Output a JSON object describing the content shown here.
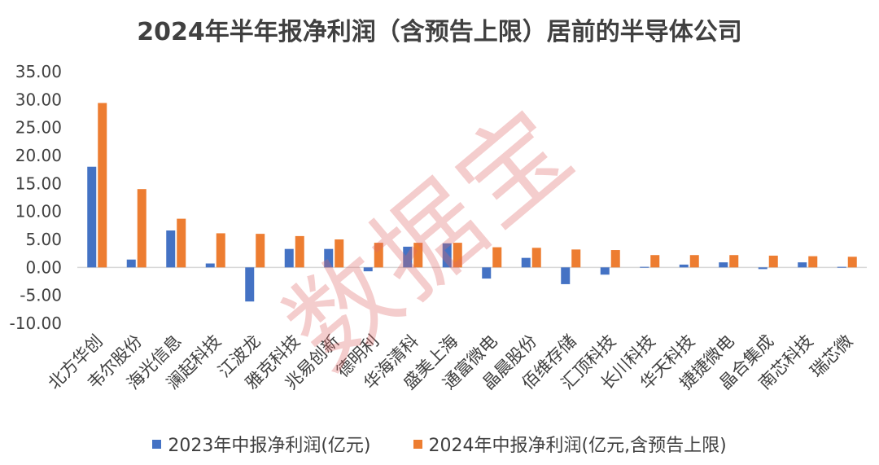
{
  "watermark": "数据宝",
  "colors": {
    "series1": "#4472C4",
    "series2": "#ED7D31",
    "gridline": "#D9D9D9",
    "watermark": "#E06666"
  },
  "chart_data": {
    "type": "bar",
    "title": "2024年半年报净利润（含预告上限）居前的半导体公司",
    "xlabel": "",
    "ylabel": "",
    "ylim": [
      -10,
      35
    ],
    "yticks": [
      "35.00",
      "30.00",
      "25.00",
      "20.00",
      "15.00",
      "10.00",
      "5.00",
      "0.00",
      "-5.00",
      "-10.00"
    ],
    "grid": false,
    "legend_position": "bottom",
    "categories": [
      "北方华创",
      "韦尔股份",
      "海光信息",
      "澜起科技",
      "江波龙",
      "雅克科技",
      "兆易创新",
      "德明利",
      "华海清科",
      "盛美上海",
      "通富微电",
      "晶晨股份",
      "佰维存储",
      "汇顶科技",
      "长川科技",
      "华天科技",
      "捷捷微电",
      "晶合集成",
      "南芯科技",
      "瑞芯微"
    ],
    "series": [
      {
        "name": "2023年中报净利润(亿元)",
        "values": [
          18.0,
          1.4,
          6.6,
          0.7,
          -6.1,
          3.3,
          3.3,
          -0.7,
          3.7,
          4.3,
          -2.0,
          1.7,
          -3.0,
          -1.3,
          0.1,
          0.5,
          0.9,
          -0.3,
          0.9,
          0.1
        ]
      },
      {
        "name": "2024年中报净利润(亿元,含预告上限)",
        "values": [
          29.4,
          14.0,
          8.7,
          6.1,
          6.0,
          5.6,
          5.0,
          4.4,
          4.4,
          4.4,
          3.6,
          3.5,
          3.2,
          3.1,
          2.2,
          2.2,
          2.2,
          2.1,
          2.0,
          1.9
        ]
      }
    ]
  }
}
